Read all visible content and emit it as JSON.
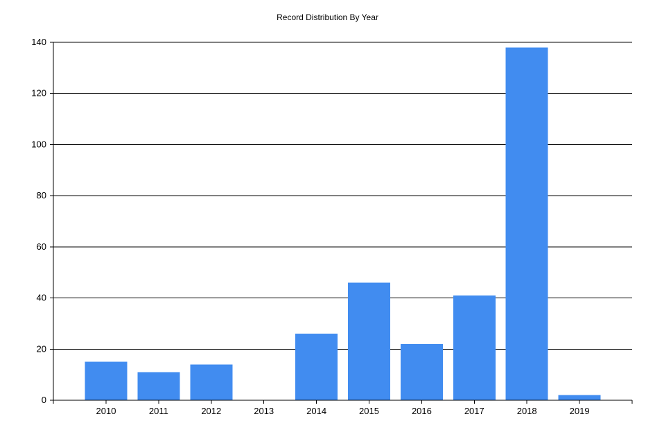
{
  "chart_data": {
    "type": "bar",
    "title": "Record Distribution By Year",
    "xlabel": "",
    "ylabel": "",
    "categories": [
      "2010",
      "2011",
      "2012",
      "2013",
      "2014",
      "2015",
      "2016",
      "2017",
      "2018",
      "2019"
    ],
    "values": [
      15,
      11,
      14,
      0,
      26,
      46,
      22,
      41,
      138,
      2
    ],
    "ylim": [
      0,
      140
    ],
    "yticks": [
      0,
      20,
      40,
      60,
      80,
      100,
      120,
      140
    ],
    "grid": true,
    "legend": "none",
    "colors": {
      "bar": "#418CF0",
      "grid": "#000000",
      "axis": "#000000"
    }
  }
}
